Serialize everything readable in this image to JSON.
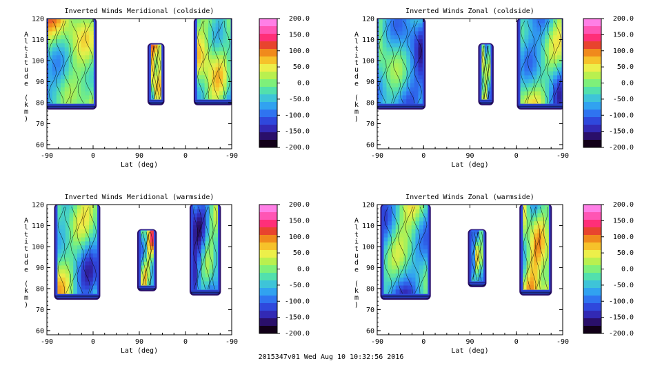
{
  "footer": "2015347v01 Wed Aug 10 10:32:56 2016",
  "colorbar": {
    "ticks": [
      "200.0",
      "150.0",
      "100.0",
      "50.0",
      "0.0",
      "-50.0",
      "-100.0",
      "-150.0",
      "-200.0"
    ],
    "colors_top_to_bottom": [
      "#ff7fe6",
      "#ff55b4",
      "#ff2f78",
      "#e8442e",
      "#f08a1c",
      "#f6c22a",
      "#ecef4a",
      "#b9f04f",
      "#7ef07a",
      "#52e0ad",
      "#3ec4d8",
      "#31a2f0",
      "#2f74f0",
      "#2f48dc",
      "#3229b4",
      "#2a0f6a",
      "#120018"
    ]
  },
  "chart_data": [
    {
      "type": "heatmap",
      "title": "Inverted Winds Meridional (coldside)",
      "xlabel": "Lat (deg)",
      "ylabel": "Altitude (km)",
      "x_tick_labels": [
        "-90",
        "0",
        "90",
        "0",
        "-90"
      ],
      "y_ticks": [
        60,
        70,
        80,
        90,
        100,
        110,
        120
      ],
      "ylim": [
        58,
        120
      ],
      "colorbar_range": [
        -200,
        200
      ],
      "data_regions": [
        {
          "lat_pass": "ascending",
          "x_from": -90,
          "x_to": 3,
          "alt_bottom": 78,
          "alt_top": 120,
          "dominant_value": 0
        },
        {
          "lat_pass": "descending",
          "x_from": 70,
          "x_to": 45,
          "alt_bottom": 80,
          "alt_top": 108,
          "dominant_value": 20
        },
        {
          "lat_pass": "descending",
          "x_from": -20,
          "x_to": -90,
          "alt_bottom": 80,
          "alt_top": 120,
          "dominant_value": -20
        }
      ]
    },
    {
      "type": "heatmap",
      "title": "Inverted Winds Zonal (coldside)",
      "xlabel": "Lat (deg)",
      "ylabel": "Altitude (km)",
      "x_tick_labels": [
        "-90",
        "0",
        "90",
        "0",
        "-90"
      ],
      "y_ticks": [
        60,
        70,
        80,
        90,
        100,
        110,
        120
      ],
      "ylim": [
        58,
        120
      ],
      "colorbar_range": [
        -200,
        200
      ],
      "data_regions": [
        {
          "lat_pass": "ascending",
          "x_from": -90,
          "x_to": 0,
          "alt_bottom": 78,
          "alt_top": 120,
          "dominant_value": -60
        },
        {
          "lat_pass": "descending",
          "x_from": 70,
          "x_to": 48,
          "alt_bottom": 80,
          "alt_top": 108,
          "dominant_value": -20
        },
        {
          "lat_pass": "descending",
          "x_from": -5,
          "x_to": -90,
          "alt_bottom": 78,
          "alt_top": 120,
          "dominant_value": -40
        }
      ]
    },
    {
      "type": "heatmap",
      "title": "Inverted Winds Meridional (warmside)",
      "xlabel": "Lat (deg)",
      "ylabel": "Altitude (km)",
      "x_tick_labels": [
        "-90",
        "0",
        "90",
        "0",
        "-90"
      ],
      "y_ticks": [
        60,
        70,
        80,
        90,
        100,
        110,
        120
      ],
      "ylim": [
        58,
        120
      ],
      "colorbar_range": [
        -200,
        200
      ],
      "data_regions": [
        {
          "lat_pass": "ascending",
          "x_from": -72,
          "x_to": 10,
          "alt_bottom": 76,
          "alt_top": 120,
          "dominant_value": -20
        },
        {
          "lat_pass": "descending",
          "x_from": 90,
          "x_to": 60,
          "alt_bottom": 80,
          "alt_top": 108,
          "dominant_value": 0
        },
        {
          "lat_pass": "descending",
          "x_from": -12,
          "x_to": -65,
          "alt_bottom": 78,
          "alt_top": 120,
          "dominant_value": -80
        }
      ]
    },
    {
      "type": "heatmap",
      "title": "Inverted Winds Zonal (warmside)",
      "xlabel": "Lat (deg)",
      "ylabel": "Altitude (km)",
      "x_tick_labels": [
        "-90",
        "0",
        "90",
        "0",
        "-90"
      ],
      "y_ticks": [
        60,
        70,
        80,
        90,
        100,
        110,
        120
      ],
      "ylim": [
        58,
        120
      ],
      "colorbar_range": [
        -200,
        200
      ],
      "data_regions": [
        {
          "lat_pass": "ascending",
          "x_from": -80,
          "x_to": 10,
          "alt_bottom": 76,
          "alt_top": 120,
          "dominant_value": -60
        },
        {
          "lat_pass": "descending",
          "x_from": 90,
          "x_to": 62,
          "alt_bottom": 82,
          "alt_top": 108,
          "dominant_value": -60
        },
        {
          "lat_pass": "descending",
          "x_from": -10,
          "x_to": -65,
          "alt_bottom": 78,
          "alt_top": 120,
          "dominant_value": 20
        }
      ]
    }
  ]
}
